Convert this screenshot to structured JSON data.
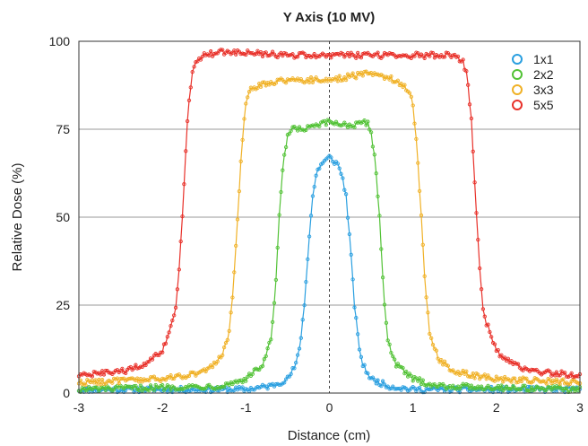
{
  "chart_data": {
    "type": "line",
    "title": "Y Axis (10 MV)",
    "xlabel": "Distance (cm)",
    "ylabel": "Relative Dose (%)",
    "xlim": [
      -3,
      3
    ],
    "ylim": [
      0,
      100
    ],
    "xticks": [
      -3,
      -2,
      -1,
      0,
      1,
      2,
      3
    ],
    "xtick_labels": [
      "-3",
      "-2",
      "-1",
      "0",
      "1",
      "2",
      "3"
    ],
    "yticks": [
      0,
      25,
      50,
      75,
      100
    ],
    "ytick_labels": [
      "0",
      "25",
      "50",
      "75",
      "100"
    ],
    "grid": "horizontal",
    "center_line": 0,
    "legend_position": "top-right",
    "marker": "open-circle",
    "series": [
      {
        "name": "1x1",
        "color": "#2a9fe0",
        "x": [
          -3.0,
          -1.0,
          -0.7,
          -0.5,
          -0.4,
          -0.35,
          -0.3,
          -0.25,
          -0.2,
          -0.15,
          -0.1,
          0.0,
          0.1,
          0.15,
          0.2,
          0.25,
          0.3,
          0.35,
          0.4,
          0.5,
          0.7,
          1.0,
          3.0
        ],
        "y": [
          1,
          1,
          2,
          4,
          8,
          14,
          25,
          42,
          56,
          63,
          65,
          67,
          65,
          62,
          56,
          42,
          25,
          14,
          8,
          4,
          2,
          1,
          1
        ]
      },
      {
        "name": "2x2",
        "color": "#52c236",
        "x": [
          -3.0,
          -1.3,
          -1.0,
          -0.8,
          -0.7,
          -0.65,
          -0.6,
          -0.55,
          -0.5,
          -0.45,
          -0.3,
          0.0,
          0.3,
          0.45,
          0.5,
          0.55,
          0.6,
          0.65,
          0.7,
          0.8,
          1.0,
          1.3,
          3.0
        ],
        "y": [
          1,
          2,
          4,
          8,
          15,
          28,
          50,
          66,
          73,
          75,
          75,
          77,
          76,
          77,
          74,
          66,
          50,
          28,
          15,
          8,
          4,
          2,
          1
        ]
      },
      {
        "name": "3x3",
        "color": "#f0b126",
        "x": [
          -3.0,
          -2.0,
          -1.5,
          -1.3,
          -1.2,
          -1.15,
          -1.1,
          -1.05,
          -1.0,
          -0.95,
          -0.8,
          -0.5,
          0.0,
          0.5,
          0.8,
          0.95,
          1.0,
          1.05,
          1.1,
          1.15,
          1.2,
          1.3,
          1.5,
          2.0,
          3.0
        ],
        "y": [
          3,
          4,
          6,
          10,
          17,
          30,
          50,
          70,
          82,
          86,
          88,
          89,
          89,
          91,
          89,
          86,
          82,
          70,
          50,
          30,
          17,
          10,
          6,
          4,
          3
        ]
      },
      {
        "name": "5x5",
        "color": "#e8312a",
        "x": [
          -3.0,
          -2.5,
          -2.2,
          -2.0,
          -1.85,
          -1.8,
          -1.75,
          -1.7,
          -1.65,
          -1.6,
          -1.5,
          -1.3,
          -0.5,
          0.0,
          0.5,
          1.3,
          1.5,
          1.6,
          1.65,
          1.7,
          1.75,
          1.8,
          1.85,
          2.0,
          2.2,
          2.5,
          3.0
        ],
        "y": [
          5,
          6,
          8,
          12,
          22,
          35,
          55,
          78,
          90,
          94,
          96,
          97,
          96,
          96,
          96,
          96,
          96,
          94,
          90,
          78,
          55,
          35,
          22,
          12,
          8,
          6,
          5
        ]
      }
    ]
  }
}
